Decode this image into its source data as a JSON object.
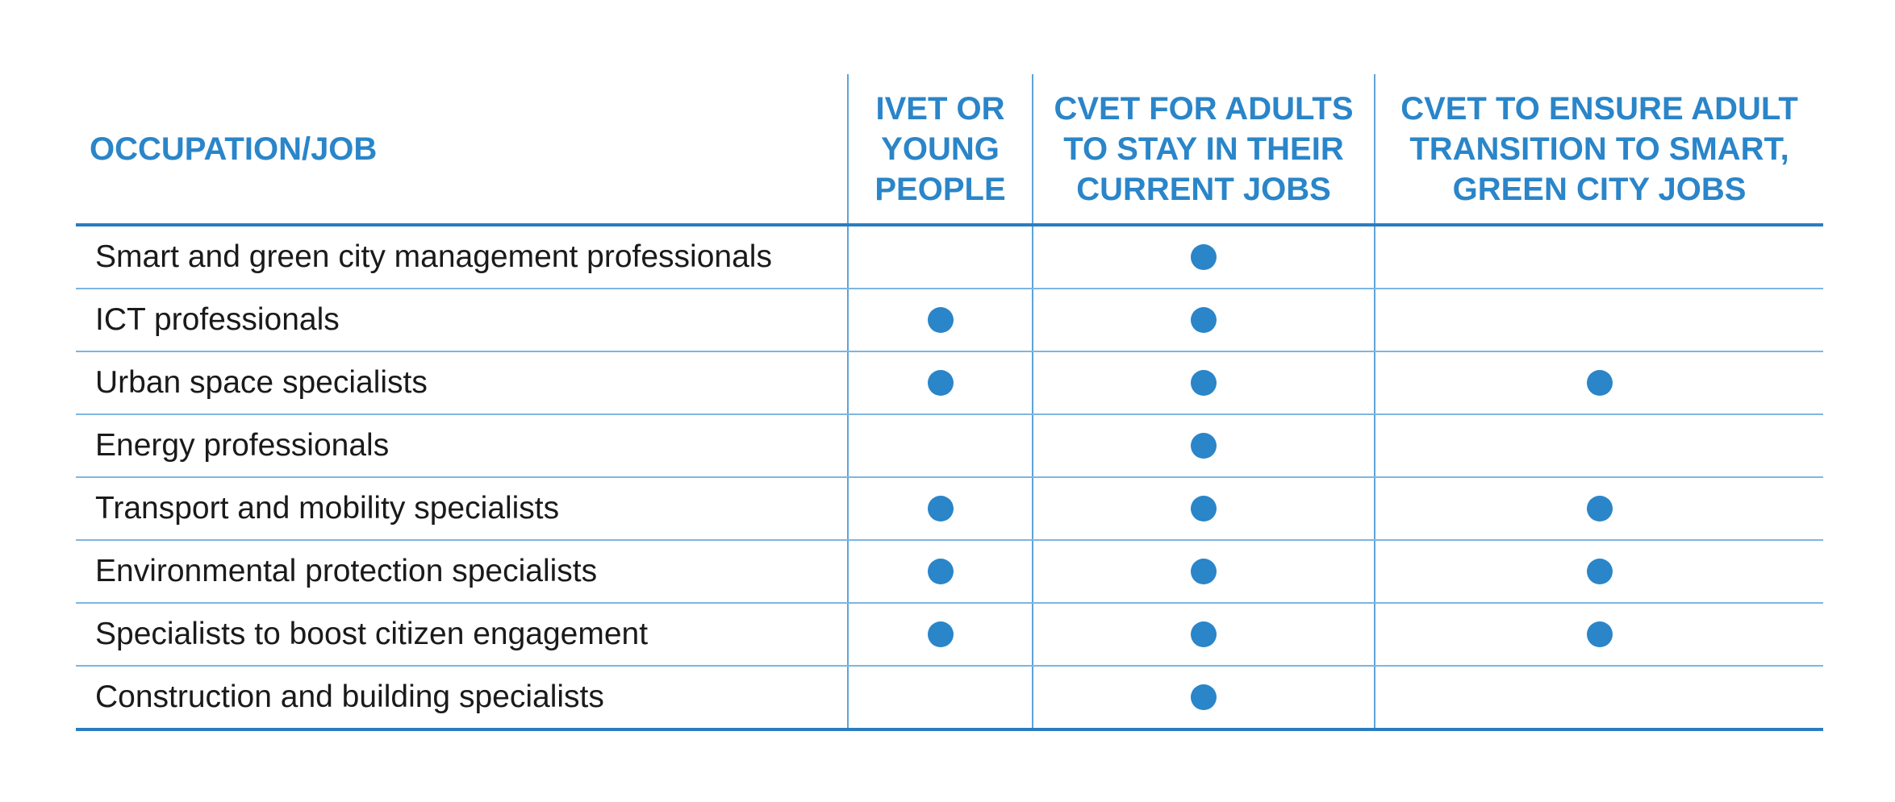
{
  "table": {
    "headers": [
      "OCCUPATION/JOB",
      "IVET OR YOUNG PEOPLE",
      "CVET FOR ADULTS TO STAY IN THEIR CURRENT JOBS",
      "CVET TO ENSURE ADULT TRANSITION TO SMART, GREEN CITY JOBS"
    ],
    "header_lines": [
      [
        "OCCUPATION/JOB"
      ],
      [
        "IVET OR",
        "YOUNG",
        "PEOPLE"
      ],
      [
        "CVET FOR ADULTS",
        "TO STAY IN THEIR",
        "CURRENT JOBS"
      ],
      [
        "CVET TO ENSURE ADULT",
        "TRANSITION TO SMART,",
        "GREEN CITY JOBS"
      ]
    ],
    "marker_color": "#2a85c9",
    "rows": [
      {
        "occupation": "Smart and green city management professionals",
        "marks": [
          false,
          true,
          false
        ]
      },
      {
        "occupation": "ICT professionals",
        "marks": [
          true,
          true,
          false
        ]
      },
      {
        "occupation": "Urban space specialists",
        "marks": [
          true,
          true,
          true
        ]
      },
      {
        "occupation": "Energy professionals",
        "marks": [
          false,
          true,
          false
        ]
      },
      {
        "occupation": "Transport and mobility specialists",
        "marks": [
          true,
          true,
          true
        ]
      },
      {
        "occupation": "Environmental protection specialists",
        "marks": [
          true,
          true,
          true
        ]
      },
      {
        "occupation": "Specialists to boost citizen engagement",
        "marks": [
          true,
          true,
          true
        ]
      },
      {
        "occupation": "Construction and building specialists",
        "marks": [
          false,
          true,
          false
        ]
      }
    ]
  }
}
